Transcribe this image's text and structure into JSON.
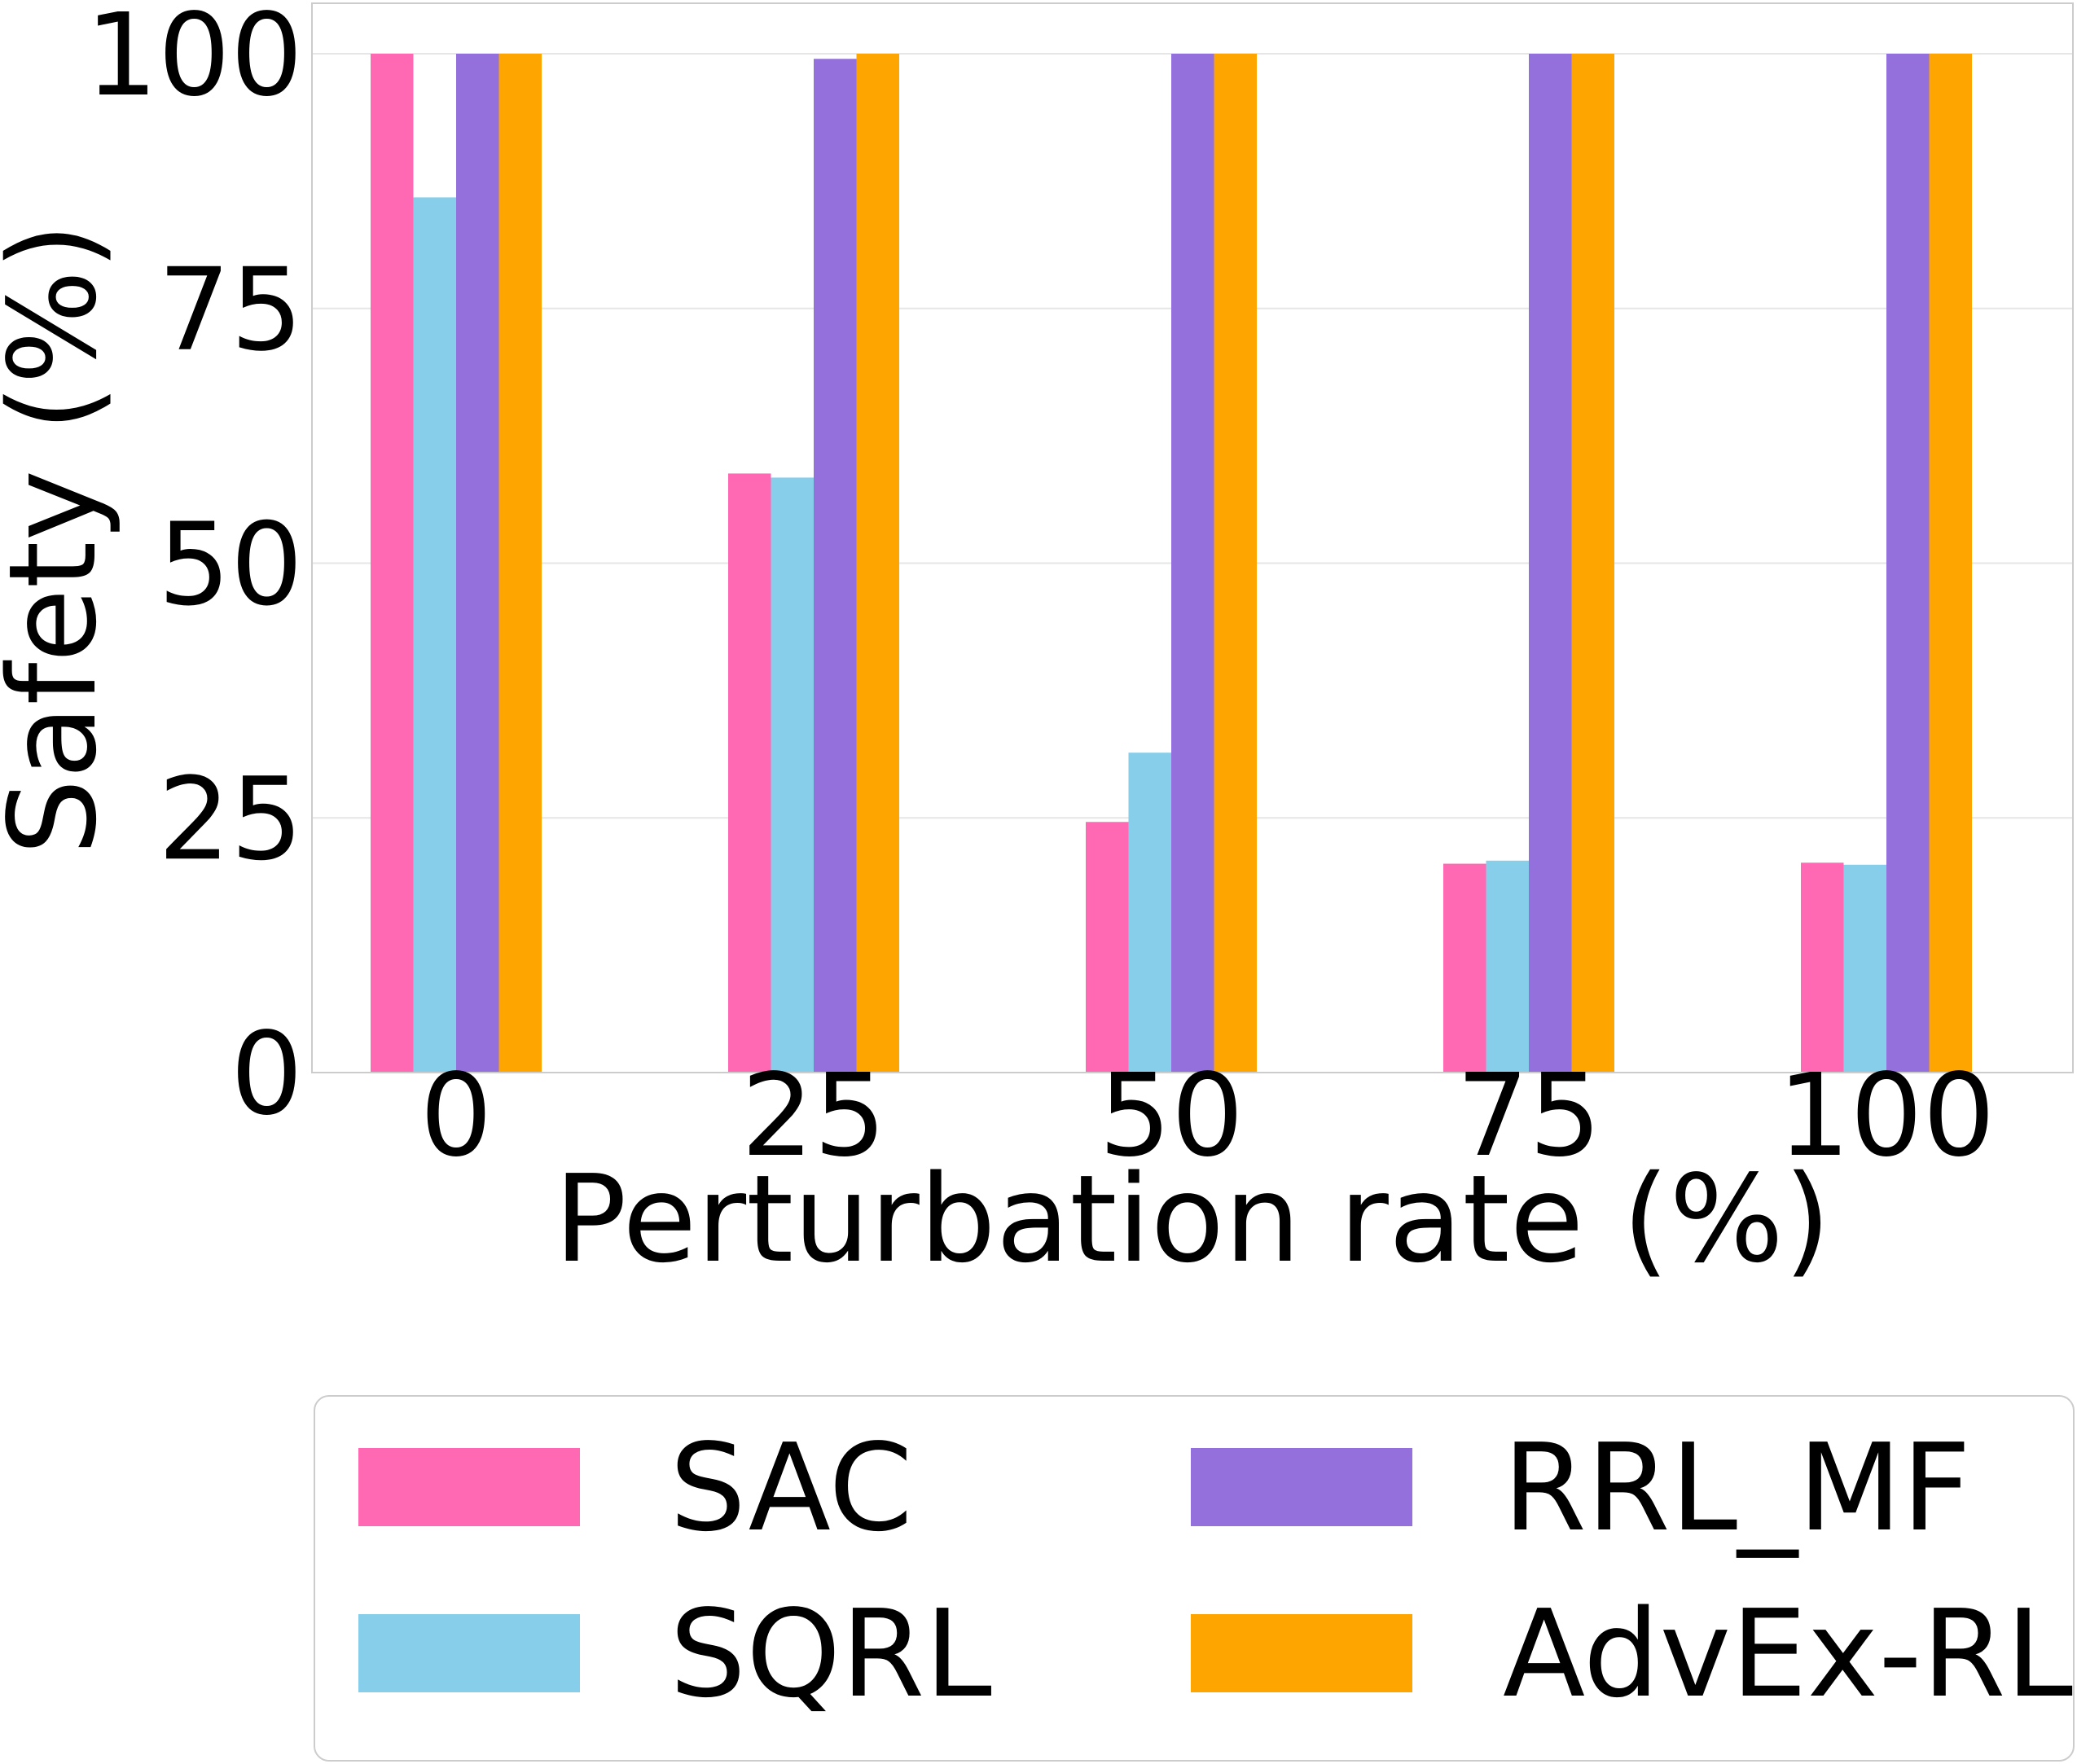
{
  "chart_data": {
    "type": "bar",
    "title": "",
    "xlabel": "Perturbation rate (%)",
    "ylabel": "Safety (%)",
    "categories": [
      "0",
      "25",
      "50",
      "75",
      "100"
    ],
    "ylim": [
      0,
      105
    ],
    "yticks": [
      0,
      25,
      50,
      75,
      100
    ],
    "grid": "horizontal",
    "legend_position": "bottom-center",
    "series": [
      {
        "name": "SAC",
        "color": "#FF69B4",
        "values": [
          100,
          58.8,
          24.6,
          20.5,
          20.6
        ]
      },
      {
        "name": "SQRL",
        "color": "#87CEEB",
        "values": [
          85.9,
          58.4,
          31.4,
          20.8,
          20.4
        ]
      },
      {
        "name": "RRL_MF",
        "color": "#9370DB",
        "values": [
          100,
          99.5,
          100,
          100,
          100
        ]
      },
      {
        "name": "AdvEx-RL",
        "color": "#FFA500",
        "values": [
          100,
          100,
          100,
          100,
          100
        ]
      }
    ]
  }
}
